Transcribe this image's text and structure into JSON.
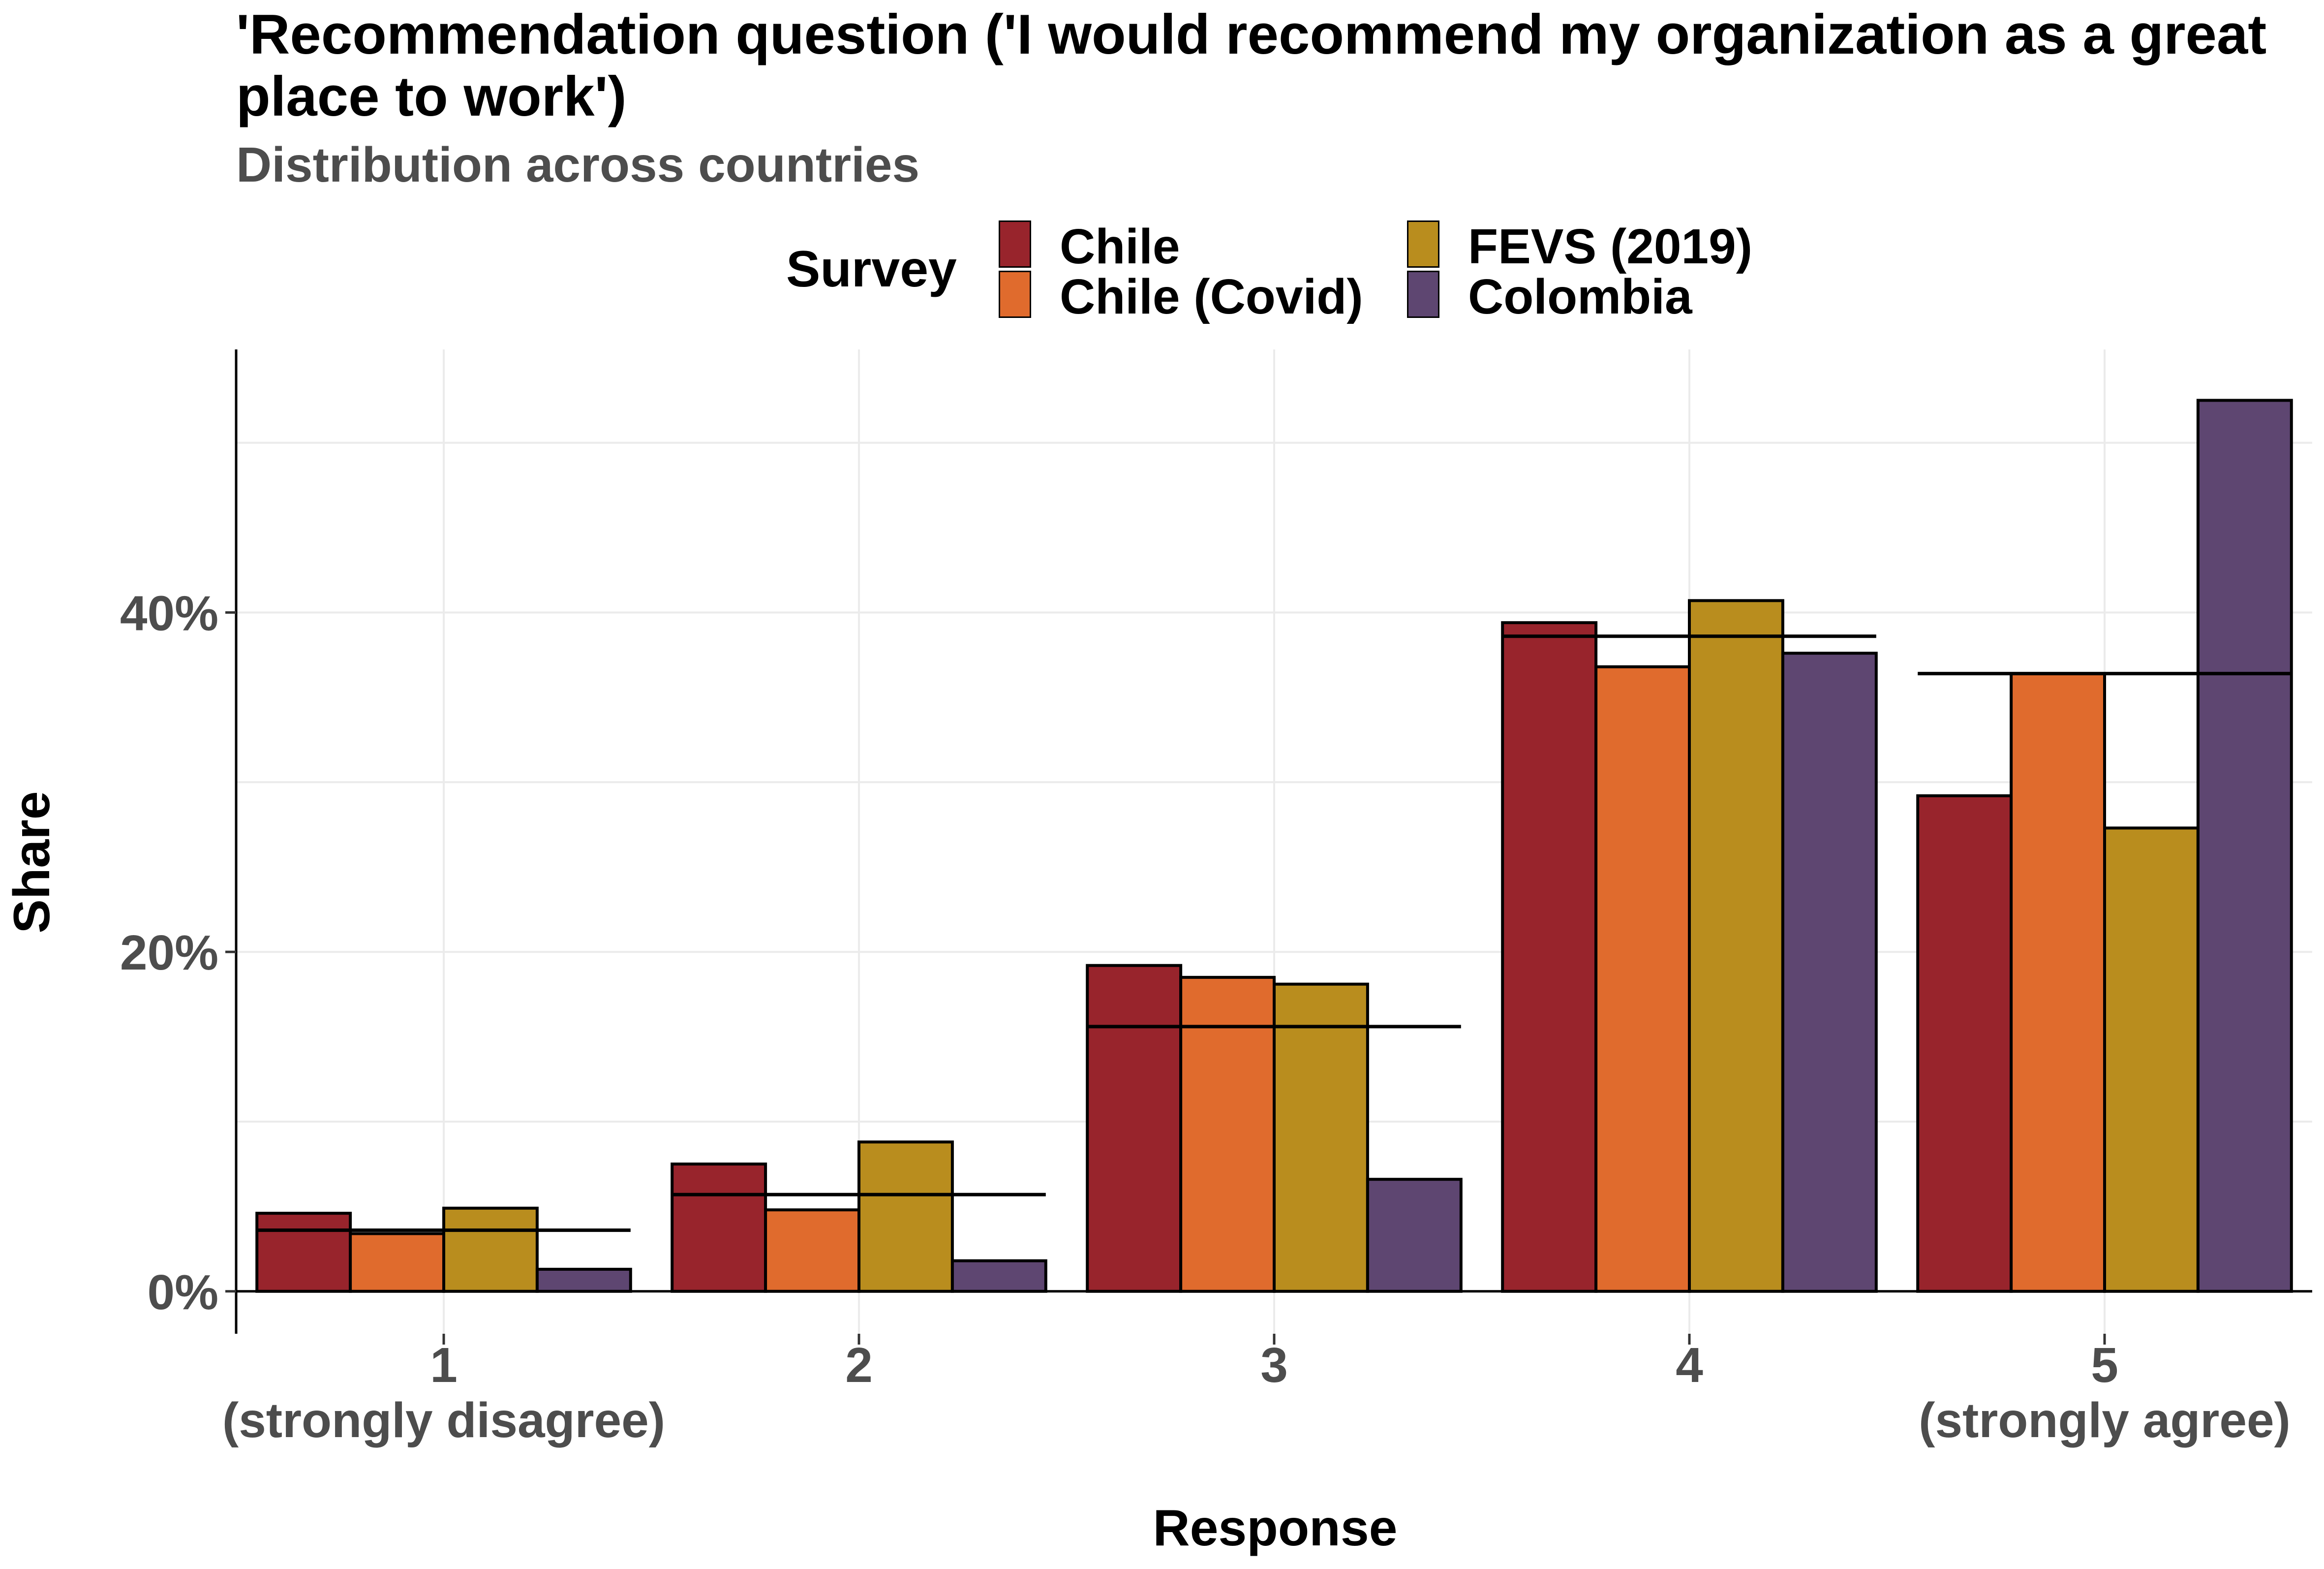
{
  "title": "'Recommendation question ('I would recommend my organization as a great place to work')",
  "subtitle": "Distribution across countries",
  "legend": {
    "title": "Survey",
    "items": [
      {
        "label": "Chile",
        "color": "#98242C"
      },
      {
        "label": "Chile (Covid)",
        "color": "#E06B2D"
      },
      {
        "label": "FEVS (2019)",
        "color": "#B98D1E"
      },
      {
        "label": "Colombia",
        "color": "#5E4671"
      }
    ]
  },
  "chart_data": {
    "type": "bar",
    "title": "'Recommendation question ('I would recommend my organization as a great place to work')",
    "subtitle": "Distribution across countries",
    "xlabel": "Response",
    "ylabel": "Share",
    "categories": [
      "1\n(strongly disagree)",
      "2",
      "3",
      "4",
      "5\n(strongly agree)"
    ],
    "y_unit": "percent",
    "ylim": [
      -2.5,
      55.5
    ],
    "yticks": [
      0,
      20,
      40
    ],
    "ytick_labels": [
      "0%",
      "20%",
      "40%"
    ],
    "series": [
      {
        "name": "Chile",
        "values": [
          4.6,
          7.5,
          19.2,
          39.4,
          29.2
        ]
      },
      {
        "name": "Chile (Covid)",
        "values": [
          3.4,
          4.8,
          18.5,
          36.8,
          36.4
        ]
      },
      {
        "name": "FEVS (2019)",
        "values": [
          4.9,
          8.8,
          18.1,
          40.7,
          27.3
        ]
      },
      {
        "name": "Colombia",
        "values": [
          1.3,
          1.8,
          6.6,
          37.6,
          52.5
        ]
      }
    ],
    "reference_lines": [
      3.6,
      5.7,
      15.6,
      38.6,
      36.4
    ],
    "grid": true,
    "legend_position": "top"
  }
}
